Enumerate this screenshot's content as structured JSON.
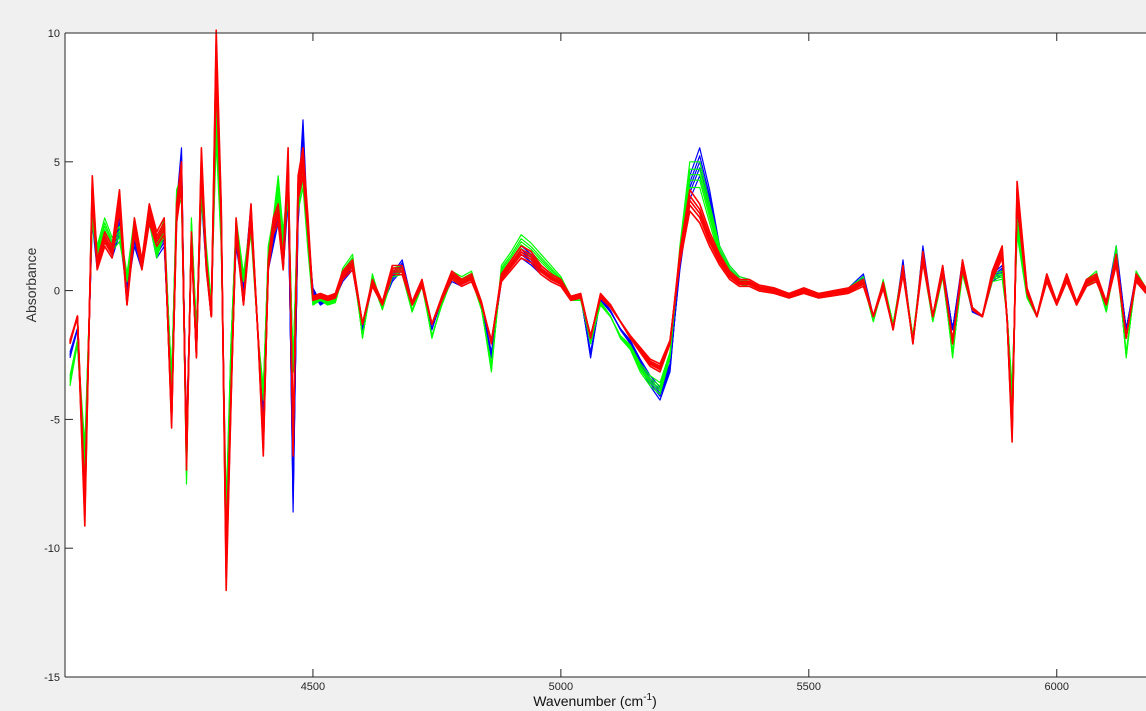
{
  "chart_data": {
    "type": "line",
    "xlabel": "Wavenumber (cm",
    "xlabel_sup": "-1",
    "xlabel_close": ")",
    "ylabel": "Absorbance",
    "xlim": [
      4000,
      6180
    ],
    "ylim": [
      -15,
      10
    ],
    "xticks": [
      4500,
      5000,
      5500,
      6000
    ],
    "yticks": [
      10,
      5,
      0,
      -5,
      -10,
      -15
    ],
    "grid": false,
    "colors": {
      "blue": "#0000ff",
      "green": "#00ff00",
      "red": "#ff0000",
      "background": "#f0f0f0",
      "axes": "#ffffff"
    },
    "series": [
      {
        "color": "#0000ff",
        "x": [
          4010,
          4025,
          4040,
          4055,
          4065,
          4080,
          4095,
          4110,
          4125,
          4140,
          4155,
          4170,
          4185,
          4200,
          4215,
          4225,
          4235,
          4245,
          4255,
          4265,
          4275,
          4285,
          4295,
          4305,
          4315,
          4325,
          4335,
          4345,
          4360,
          4375,
          4390,
          4400,
          4410,
          4420,
          4430,
          4440,
          4450,
          4460,
          4470,
          4480,
          4490,
          4500,
          4515,
          4530,
          4545,
          4560,
          4580,
          4600,
          4620,
          4640,
          4660,
          4680,
          4700,
          4720,
          4740,
          4760,
          4780,
          4800,
          4820,
          4840,
          4860,
          4880,
          4900,
          4920,
          4940,
          4960,
          4980,
          5000,
          5020,
          5040,
          5060,
          5080,
          5100,
          5120,
          5140,
          5160,
          5180,
          5200,
          5220,
          5240,
          5260,
          5280,
          5300,
          5320,
          5340,
          5360,
          5380,
          5400,
          5430,
          5460,
          5490,
          5520,
          5550,
          5580,
          5610,
          5630,
          5650,
          5670,
          5690,
          5710,
          5730,
          5750,
          5770,
          5790,
          5810,
          5830,
          5850,
          5870,
          5890,
          5900,
          5910,
          5920,
          5940,
          5960,
          5980,
          6000,
          6020,
          6040,
          6060,
          6080,
          6100,
          6120,
          6140,
          6160,
          6180
        ],
        "y": [
          -2.5,
          -1.5,
          -7.5,
          3,
          1,
          2,
          1.5,
          2.5,
          0,
          2,
          1,
          3,
          1.5,
          2,
          -4.5,
          3,
          5,
          -6,
          2,
          -2,
          4,
          1,
          -1,
          8,
          3,
          -10,
          -3,
          2,
          0,
          3,
          -2,
          -5,
          1,
          2,
          3,
          1,
          4,
          -8,
          3,
          6,
          2,
          0,
          -0.5,
          -0.3,
          -0.2,
          0.5,
          1,
          -1.5,
          0.3,
          -0.5,
          0.5,
          1,
          -0.5,
          0.3,
          -1.5,
          -0.3,
          0.5,
          0.3,
          0.5,
          -0.5,
          -2.5,
          0.5,
          1,
          1.5,
          1.2,
          0.8,
          0.5,
          0.3,
          -0.3,
          -0.2,
          -2.5,
          -0.3,
          -0.8,
          -1.5,
          -2,
          -2.8,
          -3.5,
          -4,
          -3,
          1,
          4,
          5,
          3.5,
          1.5,
          0.8,
          0.4,
          0.3,
          0.1,
          0,
          -0.2,
          0,
          -0.2,
          -0.1,
          0,
          0.5,
          -1,
          0.2,
          -1.5,
          1,
          -2,
          1.5,
          -1,
          0.8,
          -1.5,
          1,
          -0.8,
          -1,
          0.5,
          0.8,
          -1,
          -4.5,
          3,
          0,
          -1,
          0.5,
          -0.5,
          0.5,
          -0.5,
          0.3,
          0.5,
          -0.5,
          1.5,
          -1.5,
          0.5,
          0
        ]
      },
      {
        "color": "#00ff00",
        "x": [
          4010,
          4025,
          4040,
          4055,
          4065,
          4080,
          4095,
          4110,
          4125,
          4140,
          4155,
          4170,
          4185,
          4200,
          4215,
          4225,
          4235,
          4245,
          4255,
          4265,
          4275,
          4285,
          4295,
          4305,
          4315,
          4325,
          4335,
          4345,
          4360,
          4375,
          4390,
          4400,
          4410,
          4420,
          4430,
          4440,
          4450,
          4460,
          4470,
          4480,
          4490,
          4500,
          4515,
          4530,
          4545,
          4560,
          4580,
          4600,
          4620,
          4640,
          4660,
          4680,
          4700,
          4720,
          4740,
          4760,
          4780,
          4800,
          4820,
          4840,
          4860,
          4880,
          4900,
          4920,
          4940,
          4960,
          4980,
          5000,
          5020,
          5040,
          5060,
          5080,
          5100,
          5120,
          5140,
          5160,
          5180,
          5200,
          5220,
          5240,
          5260,
          5280,
          5300,
          5320,
          5340,
          5360,
          5380,
          5400,
          5430,
          5460,
          5490,
          5520,
          5550,
          5580,
          5610,
          5630,
          5650,
          5670,
          5690,
          5710,
          5730,
          5750,
          5770,
          5790,
          5810,
          5830,
          5850,
          5870,
          5890,
          5900,
          5910,
          5920,
          5940,
          5960,
          5980,
          6000,
          6020,
          6040,
          6060,
          6080,
          6100,
          6120,
          6140,
          6160,
          6180
        ],
        "y": [
          -3.5,
          -2,
          -6.5,
          3,
          1.5,
          2.5,
          1.8,
          2.2,
          0.5,
          2.5,
          1,
          3,
          1.5,
          2.5,
          -3.5,
          3.5,
          4,
          -7,
          2.5,
          -1.5,
          4,
          1.5,
          -0.5,
          6.5,
          2,
          -9,
          -2,
          2.5,
          0.5,
          2.5,
          -2,
          -4,
          1.5,
          2.5,
          4,
          2,
          4,
          -3,
          3.5,
          4.5,
          1.8,
          -0.5,
          -0.3,
          -0.5,
          -0.4,
          0.7,
          1.2,
          -1.8,
          0.5,
          -0.7,
          0.7,
          0.8,
          -0.8,
          0.3,
          -1.8,
          -0.5,
          0.6,
          0.4,
          0.6,
          -0.7,
          -3,
          0.8,
          1.3,
          1.9,
          1.6,
          1.2,
          0.8,
          0.4,
          -0.3,
          -0.3,
          -2,
          -0.5,
          -1,
          -1.8,
          -2.2,
          -3,
          -3.5,
          -3.8,
          -2.5,
          1.5,
          4.5,
          4.5,
          3,
          1.5,
          0.8,
          0.4,
          0.3,
          0.1,
          0,
          -0.2,
          0,
          -0.2,
          -0.1,
          0,
          0.4,
          -1.2,
          0.3,
          -1.3,
          0.8,
          -1.8,
          1.3,
          -1.2,
          0.7,
          -2.5,
          0.8,
          -0.7,
          -1,
          0.5,
          0.6,
          -1,
          -4,
          2.5,
          -0.2,
          -1,
          0.5,
          -0.5,
          0.5,
          -0.5,
          0.3,
          0.6,
          -0.8,
          1.5,
          -2.5,
          0.6,
          0
        ]
      },
      {
        "color": "#ff0000",
        "x": [
          4010,
          4025,
          4040,
          4055,
          4065,
          4080,
          4095,
          4110,
          4125,
          4140,
          4155,
          4170,
          4185,
          4200,
          4215,
          4225,
          4235,
          4245,
          4255,
          4265,
          4275,
          4285,
          4295,
          4305,
          4315,
          4325,
          4335,
          4345,
          4360,
          4375,
          4390,
          4400,
          4410,
          4420,
          4430,
          4440,
          4450,
          4460,
          4470,
          4480,
          4490,
          4500,
          4515,
          4530,
          4545,
          4560,
          4580,
          4600,
          4620,
          4640,
          4660,
          4680,
          4700,
          4720,
          4740,
          4760,
          4780,
          4800,
          4820,
          4840,
          4860,
          4880,
          4900,
          4920,
          4940,
          4960,
          4980,
          5000,
          5020,
          5040,
          5060,
          5080,
          5100,
          5120,
          5140,
          5160,
          5180,
          5200,
          5220,
          5240,
          5260,
          5280,
          5300,
          5320,
          5340,
          5360,
          5380,
          5400,
          5430,
          5460,
          5490,
          5520,
          5550,
          5580,
          5610,
          5630,
          5650,
          5670,
          5690,
          5710,
          5730,
          5750,
          5770,
          5790,
          5810,
          5830,
          5850,
          5870,
          5890,
          5900,
          5910,
          5920,
          5940,
          5960,
          5980,
          6000,
          6020,
          6040,
          6060,
          6080,
          6100,
          6120,
          6140,
          6160,
          6180
        ],
        "y": [
          -2,
          -1,
          -8.5,
          4,
          1,
          2,
          1.5,
          3.5,
          -0.5,
          2.5,
          1,
          3,
          2,
          2.5,
          -5,
          3,
          4.5,
          -6.5,
          2,
          -2.5,
          5,
          1,
          -1,
          9.2,
          3,
          -10.8,
          -4,
          2.5,
          -0.5,
          3,
          -2,
          -6,
          1,
          2.5,
          3,
          1,
          5,
          -6,
          4,
          5,
          2.5,
          -0.3,
          -0.2,
          -0.3,
          -0.2,
          0.6,
          1,
          -1.3,
          0.3,
          -0.5,
          0.8,
          0.8,
          -0.5,
          0.3,
          -1.3,
          -0.3,
          0.6,
          0.3,
          0.5,
          -0.5,
          -2,
          0.5,
          1,
          1.5,
          1.3,
          0.8,
          0.5,
          0.3,
          -0.3,
          -0.2,
          -1.8,
          -0.2,
          -0.6,
          -1.2,
          -1.8,
          -2.3,
          -2.8,
          -3,
          -2,
          1.3,
          3.5,
          3,
          2,
          1.2,
          0.6,
          0.3,
          0.3,
          0.1,
          0,
          -0.2,
          0,
          -0.2,
          -0.1,
          0,
          0.3,
          -1,
          0.2,
          -1.5,
          0.8,
          -2,
          1.3,
          -1,
          0.8,
          -2,
          1,
          -0.7,
          -1,
          0.6,
          1.5,
          -1.2,
          -5.5,
          3.8,
          0,
          -1,
          0.5,
          -0.5,
          0.5,
          -0.5,
          0.3,
          0.5,
          -0.5,
          1.2,
          -1.8,
          0.5,
          0
        ]
      }
    ]
  }
}
